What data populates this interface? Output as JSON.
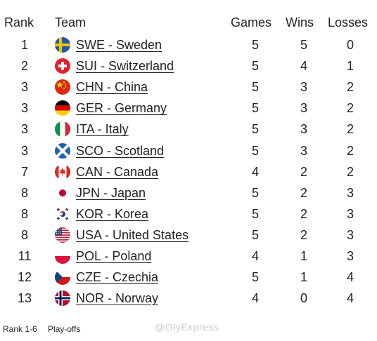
{
  "header": {
    "rank": "Rank",
    "team": "Team",
    "games": "Games",
    "wins": "Wins",
    "losses": "Losses"
  },
  "rows": [
    {
      "rank": "1",
      "team": "SWE - Sweden",
      "games": "5",
      "wins": "5",
      "losses": "0",
      "flag": "sweden-flag-icon"
    },
    {
      "rank": "2",
      "team": "SUI - Switzerland",
      "games": "5",
      "wins": "4",
      "losses": "1",
      "flag": "switzerland-flag-icon"
    },
    {
      "rank": "3",
      "team": "CHN - China",
      "games": "5",
      "wins": "3",
      "losses": "2",
      "flag": "china-flag-icon"
    },
    {
      "rank": "3",
      "team": "GER - Germany",
      "games": "5",
      "wins": "3",
      "losses": "2",
      "flag": "germany-flag-icon"
    },
    {
      "rank": "3",
      "team": "ITA - Italy",
      "games": "5",
      "wins": "3",
      "losses": "2",
      "flag": "italy-flag-icon"
    },
    {
      "rank": "3",
      "team": "SCO - Scotland",
      "games": "5",
      "wins": "3",
      "losses": "2",
      "flag": "scotland-flag-icon"
    },
    {
      "rank": "7",
      "team": "CAN - Canada",
      "games": "4",
      "wins": "2",
      "losses": "2",
      "flag": "canada-flag-icon"
    },
    {
      "rank": "8",
      "team": "JPN - Japan",
      "games": "5",
      "wins": "2",
      "losses": "3",
      "flag": "japan-flag-icon"
    },
    {
      "rank": "8",
      "team": "KOR - Korea",
      "games": "5",
      "wins": "2",
      "losses": "3",
      "flag": "korea-flag-icon"
    },
    {
      "rank": "8",
      "team": "USA - United States",
      "games": "5",
      "wins": "2",
      "losses": "3",
      "flag": "usa-flag-icon"
    },
    {
      "rank": "11",
      "team": "POL - Poland",
      "games": "4",
      "wins": "1",
      "losses": "3",
      "flag": "poland-flag-icon"
    },
    {
      "rank": "12",
      "team": "CZE - Czechia",
      "games": "5",
      "wins": "1",
      "losses": "4",
      "flag": "czechia-flag-icon"
    },
    {
      "rank": "13",
      "team": "NOR - Norway",
      "games": "4",
      "wins": "0",
      "losses": "4",
      "flag": "norway-flag-icon"
    }
  ],
  "footer": {
    "legend_range": "Rank 1-6",
    "legend_label": "Play-offs"
  },
  "watermark": "@OlyExpress"
}
